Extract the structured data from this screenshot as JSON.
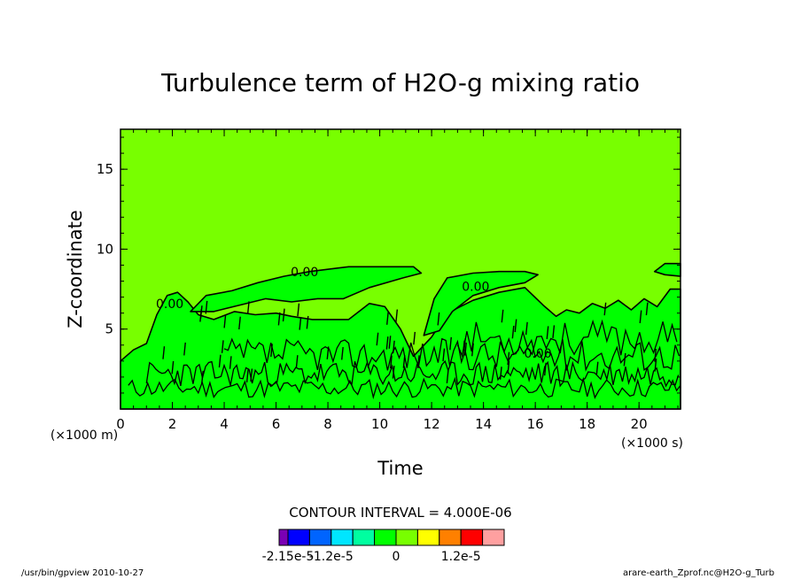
{
  "chart_data": {
    "type": "contour",
    "title": "Turbulence term of H2O-g mixing ratio",
    "xlabel": "Time",
    "ylabel": "Z-coordinate",
    "x_unit_label": "(×1000 s)",
    "y_unit_label": "(×1000 m)",
    "xlim": [
      0,
      21.6
    ],
    "ylim": [
      0,
      17.5
    ],
    "x_ticks": [
      0,
      2,
      4,
      6,
      8,
      10,
      12,
      14,
      16,
      18,
      20
    ],
    "y_ticks": [
      5,
      10,
      15
    ],
    "contour_labels": [
      {
        "text": "0.00",
        "x": 1.9,
        "y": 6.3
      },
      {
        "text": "0.00",
        "x": 7.1,
        "y": 8.3
      },
      {
        "text": "0.00",
        "x": 13.7,
        "y": 7.4
      },
      {
        "text": "0.00",
        "x": 16.1,
        "y": 3.2
      }
    ],
    "contour_interval_text": "CONTOUR INTERVAL = 4.000E-06",
    "colorbar": {
      "colors": [
        "#7a00b4",
        "#0000ff",
        "#0064ff",
        "#00e6ff",
        "#00ffa0",
        "#00ff00",
        "#78ff00",
        "#ffff00",
        "#ff8000",
        "#ff0000",
        "#ffa0a0"
      ],
      "labels": [
        "-2.15e-5",
        "-1.2e-5",
        "0",
        "1.2e-5"
      ],
      "label_positions": [
        1,
        3,
        6,
        9
      ]
    },
    "background_color": "#78ff00",
    "region_color": "#00ff00"
  },
  "footer": {
    "left": "/usr/bin/gpview  2010-10-27",
    "right": "arare-earth_Zprof.nc@H2O-g_Turb"
  }
}
